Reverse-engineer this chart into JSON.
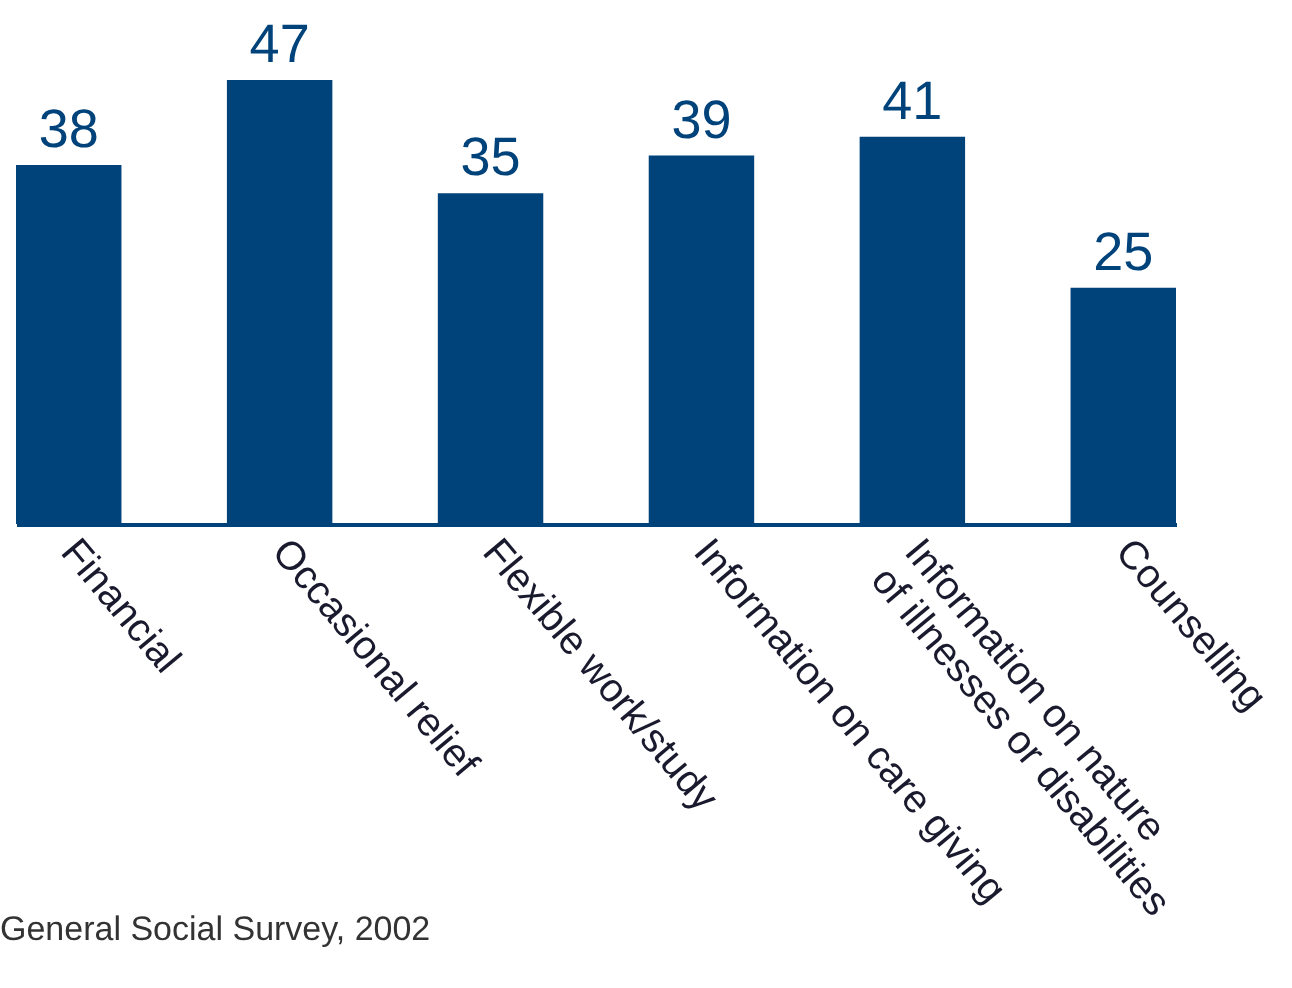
{
  "chart_data": {
    "type": "bar",
    "categories": [
      "Financial",
      "Occasional relief",
      "Flexible work/study",
      "Information on care giving",
      "Information on nature\nof illnesses or disabilities",
      "Counselling"
    ],
    "values": [
      38,
      47,
      35,
      39,
      41,
      25
    ],
    "color": "#00427a",
    "data_labels": true,
    "grid": false,
    "annotations": [
      "General Social Survey, 2002"
    ]
  }
}
